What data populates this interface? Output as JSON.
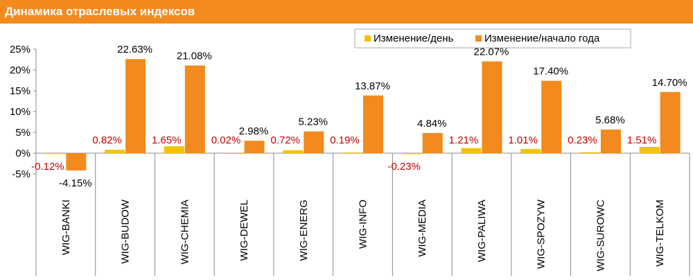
{
  "header": {
    "title": "Динамика отраслевых индексов"
  },
  "chart_data": {
    "type": "bar",
    "categories": [
      "WIG-BANKI",
      "WIG-BUDOW",
      "WIG-CHEMIA",
      "WIG-DEWEL",
      "WIG-ENERG",
      "WIG-INFO",
      "WIG-MEDIA",
      "WIG-PALIWA",
      "WIG-SPOZYW",
      "WIG-SUROWC",
      "WIG-TELKOM"
    ],
    "series": [
      {
        "name": "Изменение/день",
        "color": "#f5c200",
        "values": [
          -0.12,
          0.82,
          1.65,
          0.02,
          0.72,
          0.19,
          -0.23,
          1.21,
          1.01,
          0.23,
          1.51
        ],
        "labels": [
          "-0.12%",
          "0.82%",
          "1.65%",
          "0.02%",
          "0.72%",
          "0.19%",
          "-0.23%",
          "1.21%",
          "1.01%",
          "0.23%",
          "1.51%"
        ],
        "label_color": "#c00000"
      },
      {
        "name": "Изменение/начало года",
        "color": "#f28a1e",
        "values": [
          -4.15,
          22.63,
          21.08,
          2.98,
          5.23,
          13.87,
          4.84,
          22.07,
          17.4,
          5.68,
          14.7
        ],
        "labels": [
          "-4.15%",
          "22.63%",
          "21.08%",
          "2.98%",
          "5.23%",
          "13.87%",
          "4.84%",
          "22.07%",
          "17.40%",
          "5.68%",
          "14.70%"
        ],
        "label_color": "#000000"
      }
    ],
    "ylim": [
      -5,
      25
    ],
    "yticks": [
      -5,
      0,
      5,
      10,
      15,
      20,
      25
    ],
    "ytick_labels": [
      "-5%",
      "0%",
      "5%",
      "10%",
      "15%",
      "20%",
      "25%"
    ],
    "legend_position": "top-right",
    "grid": false,
    "category_dividers": true
  }
}
